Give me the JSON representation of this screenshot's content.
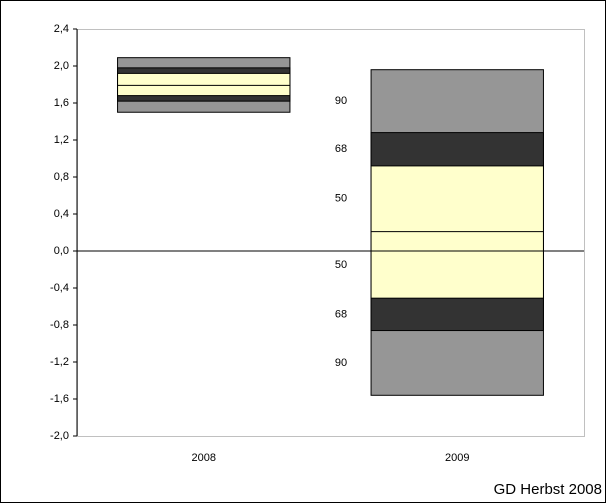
{
  "chart_data": {
    "type": "fan",
    "categories": [
      "2008",
      "2009"
    ],
    "median": [
      1.79,
      0.21
    ],
    "median_color": "#000000",
    "bands": [
      {
        "name": "90",
        "lower": [
          1.5,
          -1.56
        ],
        "upper": [
          2.09,
          1.96
        ],
        "color": "#969696"
      },
      {
        "name": "68",
        "lower": [
          1.62,
          -0.86
        ],
        "upper": [
          1.98,
          1.28
        ],
        "color": "#333333"
      },
      {
        "name": "50",
        "lower": [
          1.68,
          -0.51
        ],
        "upper": [
          1.92,
          0.92
        ],
        "color": "#ffffcc"
      }
    ],
    "ylim": [
      -2.0,
      2.4
    ],
    "yticks": [
      {
        "value": 2.4,
        "label": "2,4"
      },
      {
        "value": 2.0,
        "label": "2,0"
      },
      {
        "value": 1.6,
        "label": "1,6"
      },
      {
        "value": 1.2,
        "label": "1,2"
      },
      {
        "value": 0.8,
        "label": "0,8"
      },
      {
        "value": 0.4,
        "label": "0,4"
      },
      {
        "value": 0.0,
        "label": "0,0"
      },
      {
        "value": -0.4,
        "label": "-0,4"
      },
      {
        "value": -0.8,
        "label": "-0,8"
      },
      {
        "value": -1.2,
        "label": "-1,2"
      },
      {
        "value": -1.6,
        "label": "-1,6"
      },
      {
        "value": -2.0,
        "label": "-2,0"
      }
    ],
    "source": "GD Herbst 2008"
  }
}
